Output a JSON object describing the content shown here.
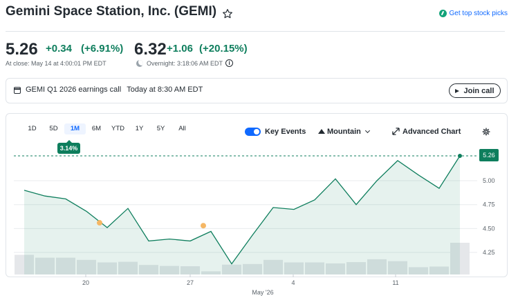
{
  "header": {
    "title": "Gemini Space Station, Inc. (GEMI)",
    "top_picks_label": "Get top stock picks"
  },
  "quote": {
    "close_price": "5.26",
    "close_change": "+0.34",
    "close_change_pct": "(+6.91%)",
    "close_label": "At close: May 14 at 4:00:01 PM EDT",
    "overnight_price": "6.32",
    "overnight_change": "+1.06",
    "overnight_change_pct": "(+20.15%)",
    "overnight_label": "Overnight: 3:18:06 AM EDT"
  },
  "earnings": {
    "title": "GEMI Q1 2026 earnings call",
    "time": "Today at 8:30 AM EDT",
    "join_label": "Join call"
  },
  "chart_controls": {
    "ranges": [
      "1D",
      "5D",
      "1M",
      "6M",
      "YTD",
      "1Y",
      "5Y",
      "All"
    ],
    "active_range": "1M",
    "range_change": "3.14%",
    "key_events_label": "Key Events",
    "chart_type_label": "Mountain",
    "advanced_label": "Advanced Chart"
  },
  "colors": {
    "up": "#0e7e5d",
    "accent": "#0f69ff",
    "event": "#f5b765",
    "volume": "#e5e7ea"
  },
  "chart_data": {
    "type": "area",
    "x_ticks": [
      "20",
      "27",
      "4",
      "11"
    ],
    "x_label": "May '26",
    "y_ticks": [
      5.0,
      4.75,
      4.5,
      4.25
    ],
    "ylim": [
      4.1,
      5.32
    ],
    "last_price_label": "5.26",
    "values": [
      4.9,
      4.84,
      4.81,
      4.68,
      4.51,
      4.71,
      4.37,
      4.39,
      4.37,
      4.47,
      4.13,
      4.43,
      4.72,
      4.7,
      4.8,
      5.02,
      4.75,
      5.0,
      5.21,
      5.06,
      4.92,
      5.26
    ],
    "events": [
      {
        "index": 4,
        "value": 4.56
      },
      {
        "index": 9,
        "value": 4.53
      }
    ],
    "volume": [
      0.62,
      0.53,
      0.53,
      0.46,
      0.38,
      0.4,
      0.3,
      0.27,
      0.26,
      0.1,
      0.31,
      0.33,
      0.46,
      0.38,
      0.38,
      0.35,
      0.39,
      0.48,
      0.42,
      0.23,
      0.25,
      1.0
    ]
  }
}
